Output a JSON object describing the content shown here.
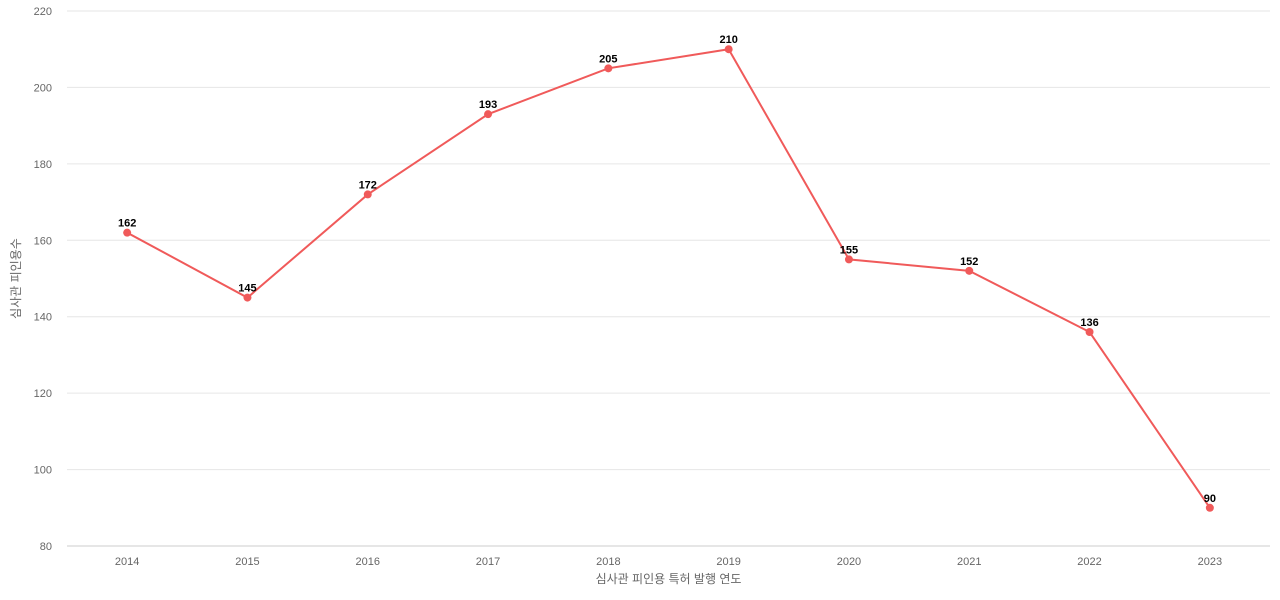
{
  "chart_data": {
    "type": "line",
    "categories": [
      "2014",
      "2015",
      "2016",
      "2017",
      "2018",
      "2019",
      "2020",
      "2021",
      "2022",
      "2023"
    ],
    "series": [
      {
        "values": [
          162,
          145,
          172,
          193,
          205,
          210,
          155,
          152,
          136,
          90
        ],
        "color": "#f05a5a"
      }
    ],
    "xlabel": "심사관 피인용 특허 발행 연도",
    "ylabel": "심사관 피인용수",
    "ylim": [
      80,
      220
    ],
    "yticks": [
      80,
      100,
      120,
      140,
      160,
      180,
      200,
      220
    ],
    "grid": true,
    "data_labels": true,
    "legend": "none"
  }
}
